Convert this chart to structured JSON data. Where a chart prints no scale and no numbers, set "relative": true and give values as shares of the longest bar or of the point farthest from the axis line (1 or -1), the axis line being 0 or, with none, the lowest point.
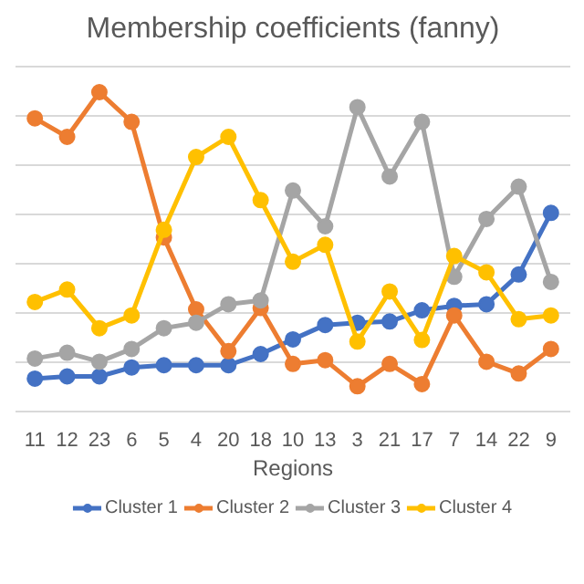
{
  "chart_data": {
    "type": "line",
    "title": "Membership coefficients (fanny)",
    "xlabel": "Regions",
    "relative": true,
    "grid": "y",
    "legend": "bottom",
    "marker": "circle",
    "line_style": "solid",
    "categories": [
      "11",
      "12",
      "23",
      "6",
      "5",
      "4",
      "20",
      "18",
      "10",
      "13",
      "3",
      "21",
      "17",
      "7",
      "14",
      "22",
      "9"
    ],
    "series": [
      {
        "name": "Cluster 1",
        "color": "#4472c4",
        "values": [
          0.103,
          0.11,
          0.11,
          0.138,
          0.145,
          0.145,
          0.145,
          0.18,
          0.226,
          0.271,
          0.278,
          0.282,
          0.317,
          0.331,
          0.336,
          0.429,
          0.622
        ]
      },
      {
        "name": "Cluster 2",
        "color": "#ed7d31",
        "values": [
          0.918,
          0.86,
          1.0,
          0.907,
          0.545,
          0.32,
          0.189,
          0.324,
          0.149,
          0.161,
          0.079,
          0.149,
          0.086,
          0.301,
          0.156,
          0.119,
          0.196
        ]
      },
      {
        "name": "Cluster 3",
        "color": "#a5a5a5",
        "values": [
          0.166,
          0.184,
          0.156,
          0.196,
          0.261,
          0.278,
          0.336,
          0.348,
          0.692,
          0.58,
          0.953,
          0.736,
          0.907,
          0.422,
          0.603,
          0.704,
          0.406
        ]
      },
      {
        "name": "Cluster 4",
        "color": "#ffc000",
        "values": [
          0.343,
          0.382,
          0.261,
          0.301,
          0.569,
          0.797,
          0.86,
          0.662,
          0.469,
          0.522,
          0.219,
          0.376,
          0.224,
          0.487,
          0.436,
          0.289,
          0.301
        ]
      }
    ]
  }
}
